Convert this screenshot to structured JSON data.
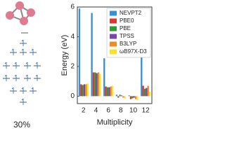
{
  "chart_data": {
    "type": "bar",
    "x_label": "Multiplicity",
    "y_label": "Energy (eV)",
    "categories": [
      "2",
      "4",
      "6",
      "8",
      "10",
      "12"
    ],
    "series": [
      {
        "name": "NEVPT2",
        "color": "#3b8fd4",
        "values": [
          5.9,
          5.6,
          2.55,
          0.1,
          0.05,
          2.7
        ]
      },
      {
        "name": "PBE0",
        "color": "#e0352b",
        "values": [
          0.8,
          1.6,
          0.65,
          -0.1,
          -0.2,
          0.7
        ]
      },
      {
        "name": "PBE",
        "color": "#2f9a35",
        "values": [
          0.75,
          1.6,
          0.6,
          0.1,
          -0.15,
          0.5
        ]
      },
      {
        "name": "TPSS",
        "color": "#7a45b0",
        "values": [
          0.8,
          1.55,
          0.6,
          0.05,
          -0.1,
          0.55
        ]
      },
      {
        "name": "B3LYP",
        "color": "#f08a24",
        "values": [
          0.8,
          1.6,
          0.65,
          -0.1,
          -0.2,
          0.7
        ]
      },
      {
        "name": "ωB97X-D3",
        "color": "#f2e52a",
        "values": [
          0.85,
          1.5,
          0.7,
          -0.15,
          -0.25,
          0.3
        ]
      }
    ],
    "ylim": [
      -0.5,
      6
    ],
    "yticks": [
      0,
      2,
      4,
      6
    ],
    "legend": "upper right"
  },
  "side_label": "30%"
}
